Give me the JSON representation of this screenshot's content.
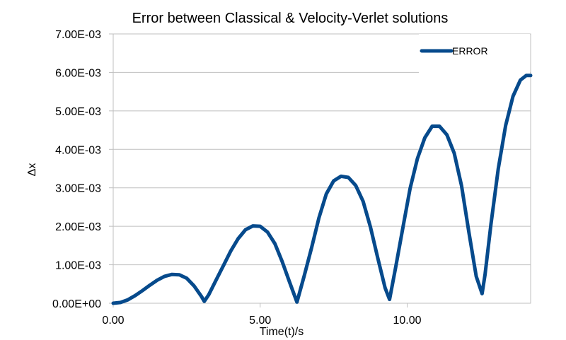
{
  "chart_data": {
    "type": "line",
    "title": "Error between Classical & Velocity-Verlet solutions",
    "xlabel": "Time(t)/s",
    "ylabel": "Δx",
    "xlim": [
      0,
      14.2
    ],
    "ylim": [
      0,
      0.007
    ],
    "x_ticks": [
      0,
      5,
      10
    ],
    "x_tick_labels": [
      "0.00",
      "5.00",
      "10.00"
    ],
    "y_ticks": [
      0,
      0.001,
      0.002,
      0.003,
      0.004,
      0.005,
      0.006,
      0.007
    ],
    "y_tick_labels": [
      "0.00E+00",
      "1.00E-03",
      "2.00E-03",
      "3.00E-03",
      "4.00E-03",
      "5.00E-03",
      "6.00E-03",
      "7.00E-03"
    ],
    "grid": {
      "horizontal": true,
      "vertical": false
    },
    "legend": {
      "position": "top-right",
      "entries": [
        "ERROR"
      ]
    },
    "series": [
      {
        "name": "ERROR",
        "color": "#064a8c",
        "x": [
          0.0,
          0.25,
          0.5,
          0.75,
          1.0,
          1.25,
          1.5,
          1.75,
          2.0,
          2.25,
          2.5,
          2.75,
          3.0,
          3.1,
          3.25,
          3.5,
          3.75,
          4.0,
          4.25,
          4.5,
          4.75,
          5.0,
          5.25,
          5.5,
          5.75,
          6.0,
          6.25,
          6.5,
          6.75,
          7.0,
          7.25,
          7.5,
          7.75,
          8.0,
          8.25,
          8.5,
          8.75,
          9.0,
          9.25,
          9.4,
          9.6,
          9.85,
          10.1,
          10.35,
          10.6,
          10.85,
          11.1,
          11.35,
          11.6,
          11.85,
          12.1,
          12.35,
          12.55,
          12.65,
          12.85,
          13.1,
          13.35,
          13.6,
          13.85,
          14.05,
          14.2
        ],
        "y": [
          0.0,
          2e-05,
          9e-05,
          0.0002,
          0.00033,
          0.00047,
          0.0006,
          0.0007,
          0.00075,
          0.00074,
          0.00065,
          0.00045,
          0.00018,
          5e-05,
          0.00022,
          0.0006,
          0.00098,
          0.00136,
          0.00168,
          0.00191,
          0.00201,
          0.002,
          0.00185,
          0.00155,
          0.00108,
          0.00055,
          3e-05,
          0.00072,
          0.00145,
          0.00222,
          0.00284,
          0.00318,
          0.0033,
          0.00327,
          0.00306,
          0.00265,
          0.00198,
          0.00118,
          0.0004,
          0.0001,
          0.0009,
          0.00195,
          0.00298,
          0.00376,
          0.0043,
          0.0046,
          0.0046,
          0.00438,
          0.0039,
          0.00305,
          0.00185,
          0.0007,
          0.00025,
          0.00075,
          0.00205,
          0.0035,
          0.00462,
          0.00538,
          0.0058,
          0.00592,
          0.00592
        ]
      }
    ]
  }
}
